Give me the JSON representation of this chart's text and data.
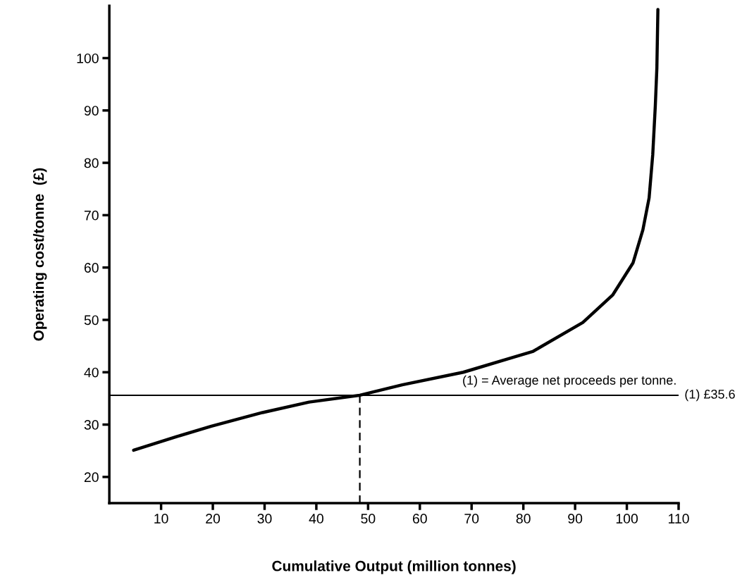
{
  "chart_data": {
    "type": "line",
    "xlabel": "Cumulative Output (million tonnes)",
    "ylabel": "Operating cost/tonne  (£)",
    "xlim": [
      0,
      110
    ],
    "xticks": [
      10,
      20,
      30,
      40,
      50,
      60,
      70,
      80,
      90,
      100,
      110
    ],
    "ylim": [
      15,
      110
    ],
    "yticks": [
      20,
      30,
      40,
      50,
      60,
      70,
      80,
      90,
      100
    ],
    "grid": false,
    "legend": false,
    "marker": "none",
    "line_style": "solid",
    "series": [
      {
        "color": "#000000",
        "x": [
          4.7,
          13.0,
          19.7,
          29.6,
          38.6,
          48.4,
          56.6,
          68.4,
          81.9,
          91.5,
          97.3,
          101.2,
          103.1,
          104.3,
          105.0,
          105.5,
          105.8,
          106.0
        ],
        "values": [
          25.1,
          27.7,
          29.7,
          32.3,
          34.3,
          35.6,
          37.6,
          40.0,
          44.0,
          49.5,
          54.8,
          60.9,
          67.2,
          73.3,
          81.5,
          90.9,
          98.1,
          109.3
        ]
      }
    ],
    "ref_lines": [
      {
        "axis": "y",
        "value": 35.6,
        "label": "(1) £35.6",
        "color": "#000000",
        "line_style": "solid"
      },
      {
        "axis": "x",
        "value": 48.4,
        "label": null,
        "color": "#000000",
        "line_style": "dashed"
      }
    ],
    "annotations": [
      "(1) = Average net proceeds per tonne."
    ]
  }
}
